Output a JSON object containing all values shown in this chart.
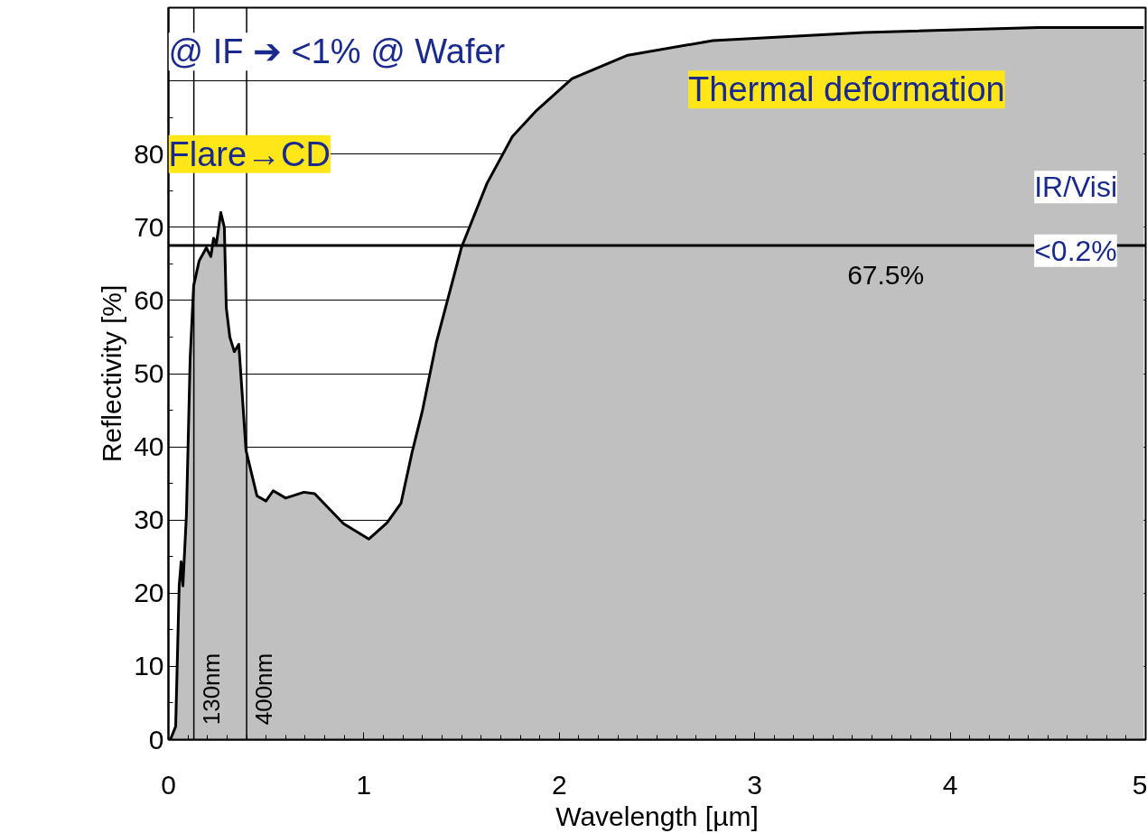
{
  "chart_data": {
    "type": "area",
    "xlabel": "Wavelength [µm]",
    "ylabel": "Reflectivity [%]",
    "x": [
      0.01,
      0.037,
      0.055,
      0.065,
      0.074,
      0.092,
      0.111,
      0.129,
      0.157,
      0.194,
      0.217,
      0.231,
      0.245,
      0.268,
      0.286,
      0.296,
      0.314,
      0.337,
      0.36,
      0.397,
      0.453,
      0.499,
      0.536,
      0.6,
      0.693,
      0.748,
      0.896,
      1.025,
      1.118,
      1.19,
      1.247,
      1.3,
      1.372,
      1.5,
      1.63,
      1.76,
      1.885,
      2.065,
      2.35,
      2.785,
      3.56,
      4.45,
      4.99
    ],
    "series": [
      {
        "color": "#c0c0c0",
        "values": [
          0,
          1.8,
          21,
          24.3,
          21,
          30.7,
          52,
          62,
          65.4,
          67.2,
          66,
          68.5,
          67.7,
          72,
          70,
          59,
          55,
          53,
          54,
          39.5,
          33.3,
          32.6,
          34,
          33,
          33.8,
          33.6,
          29.5,
          27.4,
          29.6,
          32.3,
          39.3,
          45,
          54.4,
          67.3,
          76,
          82.4,
          86,
          90.3,
          93.5,
          95.5,
          96.6,
          97.3,
          97.3
        ]
      }
    ],
    "xlim": [
      0,
      5
    ],
    "xticks": [
      0,
      1,
      2,
      3,
      4,
      5
    ],
    "ylim": [
      0,
      100
    ],
    "yticks": [
      0,
      10,
      20,
      30,
      40,
      50,
      60,
      70,
      80,
      {
        "value": 90,
        "label": null
      },
      {
        "value": 100,
        "label": null
      }
    ],
    "grid": "y",
    "ref_lines": [
      {
        "axis": "y",
        "value": 67.5,
        "label": "67.5%"
      },
      {
        "axis": "x",
        "value": 0.13,
        "label": "130nm"
      },
      {
        "axis": "x",
        "value": 0.4,
        "label": "400nm"
      }
    ],
    "annotations": [
      "@ IF ➔ <1% @ Wafer",
      "Flare→CD",
      "Thermal deformation",
      "IR/Visi",
      "<0.2%"
    ]
  }
}
